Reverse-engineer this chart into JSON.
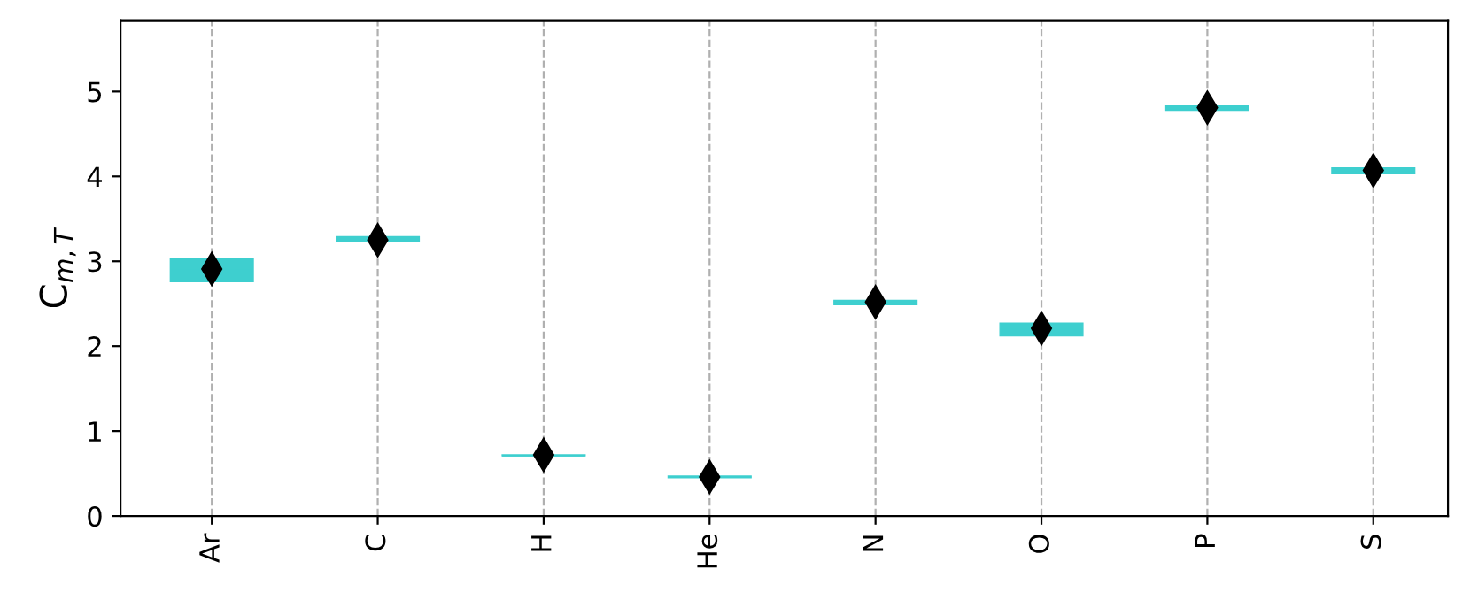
{
  "chart_data": {
    "type": "box",
    "ylabel": "C$_{m,T}$",
    "categories": [
      "Ar",
      "C",
      "H",
      "He",
      "N",
      "O",
      "P",
      "S"
    ],
    "series": [
      {
        "color": "#3ecfcf",
        "marker": "diamond",
        "boxes": [
          {
            "low": 2.76,
            "q1": 2.76,
            "median": 2.9,
            "q3": 3.03,
            "high": 3.03,
            "mean": 2.91
          },
          {
            "low": 3.24,
            "q1": 3.24,
            "median": 3.26,
            "q3": 3.29,
            "high": 3.29,
            "mean": 3.25
          },
          {
            "low": 0.71,
            "q1": 0.71,
            "median": 0.71,
            "q3": 0.72,
            "high": 0.72,
            "mean": 0.72
          },
          {
            "low": 0.45,
            "q1": 0.45,
            "median": 0.46,
            "q3": 0.47,
            "high": 0.47,
            "mean": 0.46
          },
          {
            "low": 2.49,
            "q1": 2.49,
            "median": 2.52,
            "q3": 2.54,
            "high": 2.54,
            "mean": 2.52
          },
          {
            "low": 2.12,
            "q1": 2.12,
            "median": 2.2,
            "q3": 2.27,
            "high": 2.27,
            "mean": 2.21
          },
          {
            "low": 4.78,
            "q1": 4.78,
            "median": 4.8,
            "q3": 4.83,
            "high": 4.83,
            "mean": 4.81
          },
          {
            "low": 4.03,
            "q1": 4.03,
            "median": 4.07,
            "q3": 4.1,
            "high": 4.1,
            "mean": 4.07
          }
        ]
      }
    ],
    "ylim": [
      0,
      5.83
    ],
    "yticks": [
      0,
      1,
      2,
      3,
      4,
      5
    ],
    "grid": "x"
  }
}
